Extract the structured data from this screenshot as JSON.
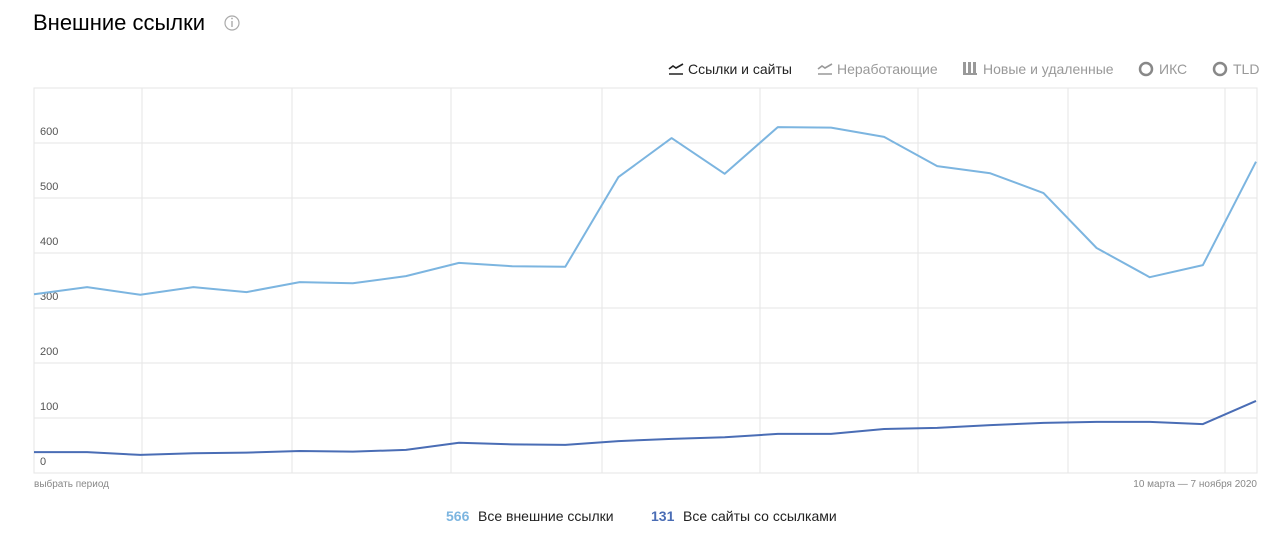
{
  "header": {
    "title": "Внешние ссылки"
  },
  "tabs": [
    "Ссылки и сайты",
    "Неработающие",
    "Новые и удаленные",
    "ИКС",
    "TLD"
  ],
  "chart_data": {
    "type": "line",
    "categories": [
      null,
      null,
      null,
      null,
      null,
      null,
      null,
      null,
      null,
      null,
      null,
      null,
      null,
      null,
      null,
      null,
      null,
      null,
      null,
      null,
      null,
      null,
      null,
      null
    ],
    "series": [
      {
        "name": "Все внешние ссылки",
        "color": "#7cb5e0",
        "values": [
          325,
          338,
          324,
          338,
          329,
          347,
          345,
          358,
          382,
          376,
          375,
          538,
          609,
          544,
          629,
          628,
          611,
          558,
          545,
          509,
          409,
          356,
          378,
          566
        ]
      },
      {
        "name": "Все сайты со ссылками",
        "color": "#4a6db5",
        "values": [
          38,
          38,
          33,
          36,
          37,
          40,
          39,
          42,
          55,
          52,
          51,
          58,
          62,
          65,
          71,
          71,
          80,
          82,
          87,
          91,
          93,
          93,
          89,
          131
        ]
      }
    ],
    "ylim": [
      0,
      700
    ],
    "yticks": [
      0,
      100,
      200,
      300,
      400,
      500,
      600
    ],
    "grid": true,
    "period_link": "выбрать период",
    "date_range": "10 марта — 7 ноября 2020"
  }
}
